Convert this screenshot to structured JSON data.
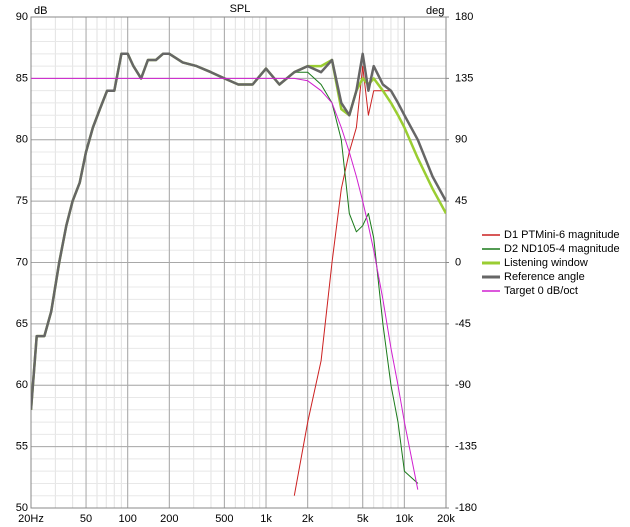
{
  "chart_data": {
    "type": "line",
    "title": "SPL",
    "y_label": "dB",
    "y2_label": "deg",
    "x": [
      20,
      22,
      25,
      28,
      32,
      36,
      40,
      45,
      50,
      56,
      63,
      71,
      80,
      90,
      100,
      110,
      125,
      140,
      160,
      180,
      200,
      250,
      315,
      400,
      500,
      630,
      800,
      1000,
      1250,
      1600,
      2000,
      2500,
      3000,
      3500,
      4000,
      4500,
      5000,
      5500,
      6000,
      7000,
      8000,
      9000,
      10000,
      12500,
      16000,
      20000
    ],
    "xlog": true,
    "xlim": [
      20,
      20000
    ],
    "xticks": [
      {
        "value": 20,
        "label": "20Hz"
      },
      50,
      100,
      200,
      500,
      {
        "value": 1000,
        "label": "1k"
      },
      {
        "value": 2000,
        "label": "2k"
      },
      {
        "value": 5000,
        "label": "5k"
      },
      {
        "value": 10000,
        "label": "10k"
      },
      {
        "value": 20000,
        "label": "20k"
      }
    ],
    "ylim": [
      50,
      90
    ],
    "yticks": [
      50,
      55,
      60,
      65,
      70,
      75,
      80,
      85,
      90
    ],
    "y2lim": [
      -180,
      180
    ],
    "y2ticks": [
      -180,
      -135,
      -90,
      -45,
      0,
      45,
      90,
      135,
      180
    ],
    "grid": true,
    "series": [
      {
        "name": "D1 PTMini-6 magnitude",
        "color": "#cc2020",
        "width": 1,
        "values": [
          null,
          null,
          null,
          null,
          null,
          null,
          null,
          null,
          null,
          null,
          null,
          null,
          null,
          null,
          null,
          null,
          null,
          null,
          null,
          null,
          null,
          null,
          null,
          null,
          null,
          null,
          null,
          null,
          null,
          51,
          57,
          62,
          70,
          76,
          79,
          81,
          86,
          82,
          84,
          84,
          84,
          83,
          82,
          80,
          77,
          75
        ]
      },
      {
        "name": "D2 ND105-4 magnitude",
        "color": "#1a7a1a",
        "width": 1,
        "values": [
          58,
          64,
          64,
          66,
          70,
          73,
          75,
          76.5,
          79,
          81,
          82.5,
          84,
          84,
          87,
          87,
          86,
          85,
          86.5,
          86.5,
          87,
          87,
          86.3,
          86,
          85.5,
          85,
          84.5,
          84.5,
          85.8,
          84.5,
          85.5,
          85.5,
          84.5,
          83,
          80,
          74,
          72.5,
          73,
          74,
          72,
          65,
          60,
          57,
          53,
          52,
          null,
          null
        ]
      },
      {
        "name": "Listening window",
        "color": "#9acd32",
        "width": 2.5,
        "values": [
          58,
          64,
          64,
          66,
          70,
          73,
          75,
          76.5,
          79,
          81,
          82.5,
          84,
          84,
          87,
          87,
          86,
          85,
          86.5,
          86.5,
          87,
          87,
          86.3,
          86,
          85.5,
          85,
          84.5,
          84.5,
          85.8,
          84.5,
          85.5,
          86,
          86,
          86.5,
          82.5,
          82,
          84,
          85,
          84.5,
          85,
          84,
          83,
          82,
          81,
          78.5,
          76,
          74
        ]
      },
      {
        "name": "Reference angle",
        "color": "#666666",
        "width": 2.5,
        "values": [
          58,
          64,
          64,
          66,
          70,
          73,
          75,
          76.5,
          79,
          81,
          82.5,
          84,
          84,
          87,
          87,
          86,
          85,
          86.5,
          86.5,
          87,
          87,
          86.3,
          86,
          85.5,
          85,
          84.5,
          84.5,
          85.8,
          84.5,
          85.5,
          86,
          85.5,
          86.5,
          83,
          82,
          84,
          87,
          84,
          86,
          84.5,
          84,
          83,
          82,
          80,
          77,
          75
        ]
      },
      {
        "name": "Target 0 dB/oct",
        "color": "#d020d0",
        "width": 1,
        "values": [
          85,
          85,
          85,
          85,
          85,
          85,
          85,
          85,
          85,
          85,
          85,
          85,
          85,
          85,
          85,
          85,
          85,
          85,
          85,
          85,
          85,
          85,
          85,
          85,
          85,
          85,
          85,
          85,
          85,
          85,
          84.8,
          84,
          83,
          81,
          79,
          77,
          75,
          73,
          71,
          67,
          63,
          60,
          57,
          51.5,
          null,
          null
        ]
      }
    ]
  }
}
